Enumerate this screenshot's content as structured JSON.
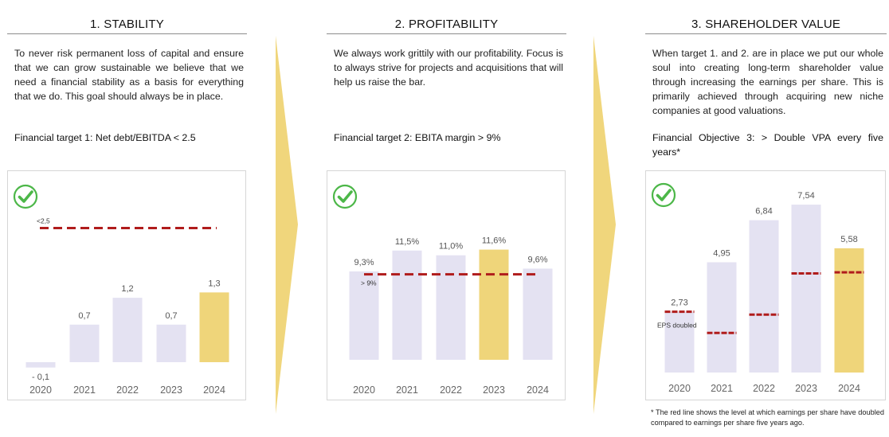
{
  "panels": [
    {
      "title": "1. STABILITY",
      "description": "To never risk permanent loss of capital and ensure that we can grow sustainable we believe that we need a financial stability as a basis for everything that we do. This goal should always be in place.",
      "target": "Financial target 1: Net debt/EBITDA < 2.5"
    },
    {
      "title": "2. PROFITABILITY",
      "description": "We always work grittily with our profitability. Focus is to always strive for projects and acquisitions that will help us raise the bar.",
      "target": "Financial target 2: EBITA margin > 9%"
    },
    {
      "title": "3. SHAREHOLDER VALUE",
      "description": "When target 1. and 2. are in place we put our whole soul into creating long-term shareholder value through increasing the earnings per share. This is primarily achieved through acquiring new niche companies at good valuations.",
      "target": "Financial Objective 3: > Double VPA every five years*"
    }
  ],
  "footnote": "* The red line shows the level at which earnings per share have doubled compared to earnings per share five years ago.",
  "icons": [
    "check-circle-icon",
    "chevron-arrow-icon"
  ],
  "colors": {
    "bar_default": "#e4e2f2",
    "bar_highlight": "#efd57a",
    "target_line": "#b01c1c",
    "arrow": "#f0d67c",
    "check": "#4cb748",
    "axis_text": "#666666"
  },
  "chart_data": [
    {
      "type": "bar",
      "categories": [
        "2020",
        "2021",
        "2022",
        "2023",
        "2024"
      ],
      "values": [
        -0.1,
        0.7,
        1.2,
        0.7,
        1.3
      ],
      "value_labels": [
        "- 0,1",
        "0,7",
        "1,2",
        "0,7",
        "1,3"
      ],
      "highlight_index": 4,
      "ylim": [
        -0.15,
        2.7
      ],
      "target_line": {
        "value": 2.5,
        "label": "<2,5"
      },
      "status": "check"
    },
    {
      "type": "bar",
      "categories": [
        "2020",
        "2021",
        "2022",
        "2023",
        "2024"
      ],
      "values": [
        9.3,
        11.5,
        11.0,
        11.6,
        9.6
      ],
      "value_labels": [
        "9,3%",
        "11,5%",
        "11,0%",
        "11,6%",
        "9,6%"
      ],
      "highlight_index": 3,
      "ylim": [
        0,
        15.0
      ],
      "target_line": {
        "value": 9,
        "label": "> 9%"
      },
      "status": "check"
    },
    {
      "type": "bar",
      "categories": [
        "2020",
        "2021",
        "2022",
        "2023",
        "2024"
      ],
      "values": [
        2.73,
        4.95,
        6.84,
        7.54,
        5.58
      ],
      "value_labels": [
        "2,73",
        "4,95",
        "6,84",
        "7,54",
        "5,58"
      ],
      "highlight_index": 4,
      "ylim": [
        0,
        8.4
      ],
      "doubling_levels": [
        2.73,
        1.78,
        2.6,
        4.45,
        4.5
      ],
      "annotation": "EPS doubled",
      "status": "check"
    }
  ]
}
